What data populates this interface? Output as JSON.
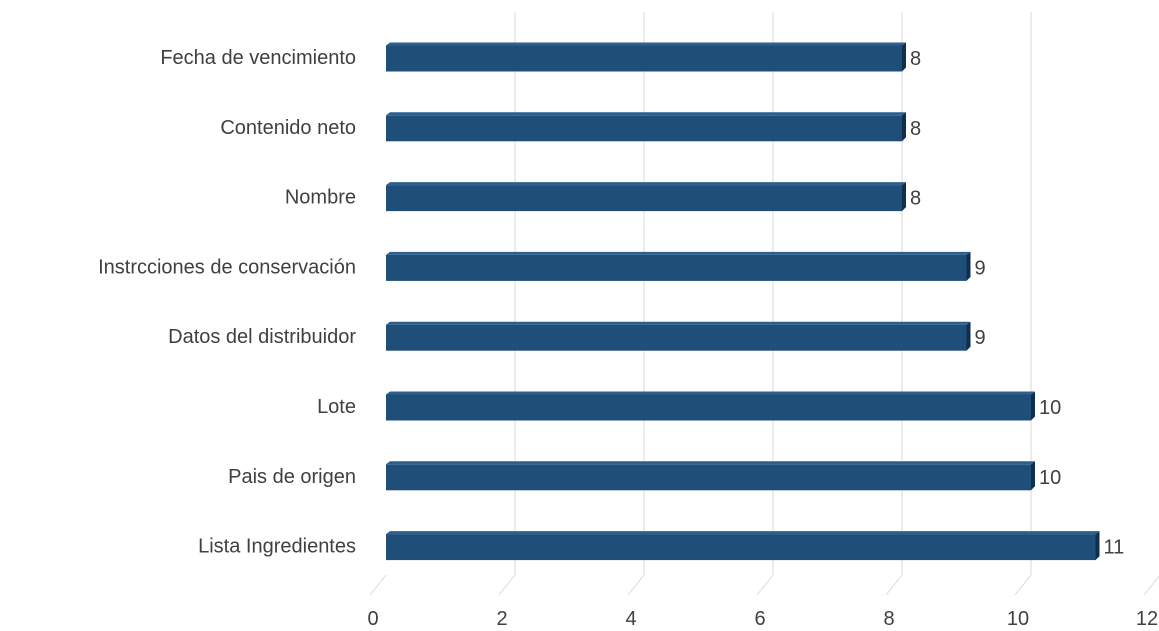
{
  "chart_data": {
    "type": "bar",
    "orientation": "horizontal",
    "style": "3d",
    "categories": [
      "Fecha de vencimiento",
      "Contenido neto",
      "Nombre",
      "Instrcciones de conservación",
      "Datos del distribuidor",
      "Lote",
      "Pais de origen",
      "Lista Ingredientes"
    ],
    "values": [
      8,
      8,
      8,
      9,
      9,
      10,
      10,
      11
    ],
    "data_labels": [
      "8",
      "8",
      "8",
      "9",
      "9",
      "10",
      "10",
      "11"
    ],
    "xlim": [
      0,
      12
    ],
    "x_ticks": [
      "0",
      "2",
      "4",
      "6",
      "8",
      "10",
      "12"
    ],
    "grid": true,
    "bar_color": "#1f4e79",
    "title": "",
    "xlabel": "",
    "ylabel": ""
  }
}
